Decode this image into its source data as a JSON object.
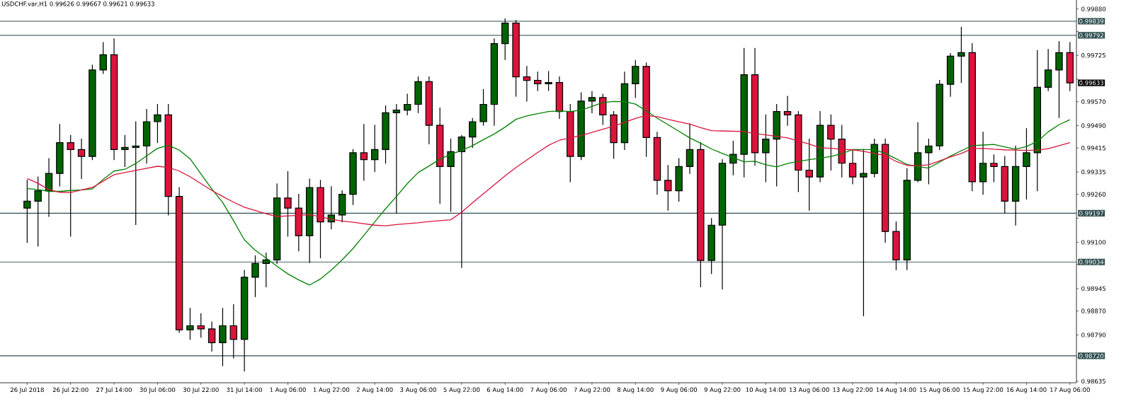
{
  "chart_data": {
    "type": "candlestick",
    "title": "USDCHF.var,H1 0.99626 0.99667 0.99621 0.99633",
    "categories": [
      "26 Jul 2018",
      null,
      null,
      null,
      "26 Jul 22:00",
      null,
      null,
      null,
      "27 Jul 14:00",
      null,
      null,
      null,
      "30 Jul 06:00",
      null,
      null,
      null,
      "30 Jul 22:00",
      null,
      null,
      null,
      "31 Jul 14:00",
      null,
      null,
      null,
      "1 Aug 06:00",
      null,
      null,
      null,
      "1 Aug 22:00",
      null,
      null,
      null,
      "2 Aug 14:00",
      null,
      null,
      null,
      "3 Aug 06:00",
      null,
      null,
      null,
      "5 Aug 22:00",
      null,
      null,
      null,
      "6 Aug 14:00",
      null,
      null,
      null,
      "7 Aug 06:00",
      null,
      null,
      null,
      "7 Aug 22:00",
      null,
      null,
      null,
      "8 Aug 14:00",
      null,
      null,
      null,
      "9 Aug 06:00",
      null,
      null,
      null,
      "9 Aug 22:00",
      null,
      null,
      null,
      "10 Aug 14:00",
      null,
      null,
      null,
      "13 Aug 06:00",
      null,
      null,
      null,
      "13 Aug 22:00",
      null,
      null,
      null,
      "14 Aug 14:00",
      null,
      null,
      null,
      "15 Aug 06:00",
      null,
      null,
      null,
      "15 Aug 22:00",
      null,
      null,
      null,
      "16 Aug 14:00",
      null,
      null,
      null,
      "17 Aug 06:00"
    ],
    "ohlc": [
      [
        0.99214,
        0.99307,
        0.99099,
        0.99237
      ],
      [
        0.99237,
        0.99318,
        0.99087,
        0.99272
      ],
      [
        0.99272,
        0.9938,
        0.99186,
        0.9933
      ],
      [
        0.9933,
        0.99494,
        0.99288,
        0.99433
      ],
      [
        0.99433,
        0.99457,
        0.9912,
        0.9941
      ],
      [
        0.9941,
        0.99445,
        0.99313,
        0.99387
      ],
      [
        0.99387,
        0.99692,
        0.99376,
        0.99676
      ],
      [
        0.99676,
        0.99768,
        0.99664,
        0.99727
      ],
      [
        0.99727,
        0.9978,
        0.99376,
        0.9941
      ],
      [
        0.9941,
        0.99457,
        0.99353,
        0.99417
      ],
      [
        0.99417,
        0.99503,
        0.99159,
        0.99422
      ],
      [
        0.99422,
        0.99544,
        0.99364,
        0.99503
      ],
      [
        0.99503,
        0.99561,
        0.99433,
        0.99526
      ],
      [
        0.99526,
        0.99561,
        0.99191,
        0.99253
      ],
      [
        0.99253,
        0.99283,
        0.98798,
        0.98807
      ],
      [
        0.98807,
        0.98879,
        0.98775,
        0.98821
      ],
      [
        0.98821,
        0.98861,
        0.98782,
        0.9881
      ],
      [
        0.9881,
        0.98833,
        0.98736,
        0.98764
      ],
      [
        0.98764,
        0.98879,
        0.98687,
        0.98821
      ],
      [
        0.98821,
        0.98891,
        0.98713,
        0.98775
      ],
      [
        0.98775,
        0.99006,
        0.98669,
        0.98983
      ],
      [
        0.98983,
        0.99055,
        0.98918,
        0.99029
      ],
      [
        0.99029,
        0.99064,
        0.98951,
        0.99041
      ],
      [
        0.99041,
        0.99295,
        0.99029,
        0.99248
      ],
      [
        0.99248,
        0.99336,
        0.9912,
        0.99214
      ],
      [
        0.99214,
        0.9926,
        0.99071,
        0.99122
      ],
      [
        0.99122,
        0.99311,
        0.99032,
        0.99283
      ],
      [
        0.99283,
        0.99307,
        0.99048,
        0.99168
      ],
      [
        0.99168,
        0.99286,
        0.99145,
        0.99191
      ],
      [
        0.99191,
        0.99272,
        0.99168,
        0.9926
      ],
      [
        0.9926,
        0.9941,
        0.99226,
        0.99399
      ],
      [
        0.99399,
        0.99494,
        0.99307,
        0.99376
      ],
      [
        0.99376,
        0.99491,
        0.99336,
        0.9941
      ],
      [
        0.9941,
        0.99556,
        0.99364,
        0.99533
      ],
      [
        0.99533,
        0.99561,
        0.99198,
        0.99542
      ],
      [
        0.99542,
        0.99595,
        0.99526,
        0.99561
      ],
      [
        0.99561,
        0.99653,
        0.99533,
        0.99637
      ],
      [
        0.99637,
        0.99653,
        0.99429,
        0.99491
      ],
      [
        0.99491,
        0.99549,
        0.9923,
        0.99353
      ],
      [
        0.99353,
        0.99445,
        0.99203,
        0.99403
      ],
      [
        0.99403,
        0.99457,
        0.99015,
        0.99452
      ],
      [
        0.99452,
        0.99514,
        0.99417,
        0.99503
      ],
      [
        0.99503,
        0.99611,
        0.99491,
        0.99561
      ],
      [
        0.99561,
        0.9978,
        0.99491,
        0.99764
      ],
      [
        0.99764,
        0.99847,
        0.99711,
        0.99833
      ],
      [
        0.99833,
        0.99842,
        0.99588,
        0.99653
      ],
      [
        0.99653,
        0.99688,
        0.99572,
        0.99641
      ],
      [
        0.99641,
        0.99669,
        0.99607,
        0.9963
      ],
      [
        0.9963,
        0.99671,
        0.99607,
        0.99634
      ],
      [
        0.99634,
        0.99653,
        0.99514,
        0.99537
      ],
      [
        0.99537,
        0.99561,
        0.99302,
        0.99387
      ],
      [
        0.99387,
        0.996,
        0.99376,
        0.99572
      ],
      [
        0.99572,
        0.99604,
        0.99533,
        0.99584
      ],
      [
        0.99584,
        0.99595,
        0.99494,
        0.99526
      ],
      [
        0.99526,
        0.99537,
        0.9938,
        0.99433
      ],
      [
        0.99433,
        0.99669,
        0.9941,
        0.9963
      ],
      [
        0.9963,
        0.99708,
        0.99584,
        0.99688
      ],
      [
        0.99688,
        0.99699,
        0.99387,
        0.9945
      ],
      [
        0.9945,
        0.99468,
        0.9926,
        0.99307
      ],
      [
        0.99307,
        0.99357,
        0.99207,
        0.99272
      ],
      [
        0.99272,
        0.9938,
        0.99237,
        0.99353
      ],
      [
        0.99353,
        0.99496,
        0.9933,
        0.9941
      ],
      [
        0.9941,
        0.99433,
        0.98951,
        0.99039
      ],
      [
        0.99039,
        0.99179,
        0.98995,
        0.99157
      ],
      [
        0.99157,
        0.99376,
        0.98944,
        0.99364
      ],
      [
        0.99364,
        0.99438,
        0.99325,
        0.99394
      ],
      [
        0.99394,
        0.99748,
        0.99318,
        0.9966
      ],
      [
        0.9966,
        0.99748,
        0.99357,
        0.99399
      ],
      [
        0.99399,
        0.99526,
        0.99302,
        0.99445
      ],
      [
        0.99445,
        0.99561,
        0.99288,
        0.99537
      ],
      [
        0.99537,
        0.99588,
        0.99491,
        0.99526
      ],
      [
        0.99526,
        0.99537,
        0.99269,
        0.99341
      ],
      [
        0.99341,
        0.99445,
        0.99207,
        0.99318
      ],
      [
        0.99318,
        0.99537,
        0.99302,
        0.99491
      ],
      [
        0.99491,
        0.99526,
        0.99341,
        0.99445
      ],
      [
        0.99445,
        0.99491,
        0.99318,
        0.99364
      ],
      [
        0.99364,
        0.9941,
        0.99295,
        0.99318
      ],
      [
        0.99318,
        0.9941,
        0.98854,
        0.9933
      ],
      [
        0.9933,
        0.99445,
        0.99318,
        0.99427
      ],
      [
        0.99427,
        0.99445,
        0.99099,
        0.99136
      ],
      [
        0.99136,
        0.99168,
        0.99008,
        0.99041
      ],
      [
        0.99041,
        0.99346,
        0.99008,
        0.99307
      ],
      [
        0.99307,
        0.995,
        0.99302,
        0.99399
      ],
      [
        0.99399,
        0.99445,
        0.99295,
        0.99422
      ],
      [
        0.99422,
        0.99641,
        0.9941,
        0.99628
      ],
      [
        0.99628,
        0.99731,
        0.99588,
        0.99722
      ],
      [
        0.99722,
        0.99819,
        0.99634,
        0.99734
      ],
      [
        0.99734,
        0.99764,
        0.99272,
        0.99302
      ],
      [
        0.99302,
        0.99468,
        0.9926,
        0.99364
      ],
      [
        0.99364,
        0.99392,
        0.99302,
        0.99353
      ],
      [
        0.99353,
        0.99387,
        0.99198,
        0.99237
      ],
      [
        0.99237,
        0.99422,
        0.99157,
        0.99353
      ],
      [
        0.99353,
        0.9948,
        0.99244,
        0.99399
      ],
      [
        0.99399,
        0.99741,
        0.99272,
        0.99618
      ],
      [
        0.99618,
        0.99745,
        0.99607,
        0.99676
      ],
      [
        0.99676,
        0.99771,
        0.99517,
        0.99734
      ],
      [
        0.99734,
        0.99768,
        0.99607,
        0.99633
      ]
    ],
    "series": [
      {
        "type": "line",
        "color": "#008000",
        "values": [
          0.99279,
          0.99276,
          0.9927,
          0.9927,
          0.99273,
          0.99275,
          0.99278,
          0.9931,
          0.99338,
          0.99344,
          0.99363,
          0.99389,
          0.99414,
          0.99424,
          0.99408,
          0.99379,
          0.99328,
          0.99278,
          0.99233,
          0.99172,
          0.99108,
          0.99073,
          0.99047,
          0.9902,
          0.98994,
          0.98974,
          0.98957,
          0.98977,
          0.99007,
          0.99041,
          0.99079,
          0.99123,
          0.99168,
          0.99212,
          0.99253,
          0.99296,
          0.99333,
          0.99355,
          0.99378,
          0.99394,
          0.99407,
          0.99423,
          0.99443,
          0.99462,
          0.99485,
          0.99511,
          0.99522,
          0.9953,
          0.99537,
          0.99539,
          0.99537,
          0.99542,
          0.99554,
          0.99567,
          0.99571,
          0.9957,
          0.99562,
          0.99539,
          0.99515,
          0.99493,
          0.99471,
          0.99449,
          0.99431,
          0.99412,
          0.99397,
          0.99383,
          0.99369,
          0.99371,
          0.99359,
          0.99352,
          0.99363,
          0.9937,
          0.99376,
          0.99381,
          0.99387,
          0.99396,
          0.9941,
          0.9941,
          0.9941,
          0.99397,
          0.99379,
          0.9936,
          0.99353,
          0.99348,
          0.99368,
          0.99388,
          0.99406,
          0.99423,
          0.99425,
          0.99427,
          0.99419,
          0.99411,
          0.9942,
          0.99437,
          0.99469,
          0.99493,
          0.9951
        ]
      },
      {
        "type": "line",
        "color": "#dc143c",
        "values": [
          0.99313,
          0.99297,
          0.99276,
          0.99267,
          0.99266,
          0.99275,
          0.99283,
          0.99304,
          0.99326,
          0.99333,
          0.9934,
          0.99347,
          0.99354,
          0.9935,
          0.99338,
          0.99319,
          0.99296,
          0.99273,
          0.99253,
          0.99234,
          0.99217,
          0.99206,
          0.99195,
          0.99186,
          0.99188,
          0.9919,
          0.99192,
          0.99185,
          0.99177,
          0.99171,
          0.99167,
          0.99162,
          0.99157,
          0.99155,
          0.99159,
          0.99162,
          0.99165,
          0.99169,
          0.99172,
          0.99175,
          0.992,
          0.99232,
          0.99262,
          0.99292,
          0.99322,
          0.9935,
          0.99375,
          0.994,
          0.99424,
          0.99441,
          0.99449,
          0.99457,
          0.99467,
          0.99478,
          0.99488,
          0.99501,
          0.99514,
          0.99524,
          0.9952,
          0.99511,
          0.99503,
          0.99495,
          0.99483,
          0.99473,
          0.99472,
          0.99471,
          0.9947,
          0.99463,
          0.99459,
          0.99454,
          0.99449,
          0.99438,
          0.99428,
          0.99416,
          0.99414,
          0.99411,
          0.99409,
          0.99404,
          0.99397,
          0.9939,
          0.9937,
          0.99357,
          0.99356,
          0.99359,
          0.99372,
          0.99385,
          0.99397,
          0.99413,
          0.99414,
          0.99411,
          0.99409,
          0.99408,
          0.99407,
          0.99408,
          0.99413,
          0.99423,
          0.99433
        ]
      }
    ],
    "ylim": [
      0.9863,
      0.9991
    ],
    "yticks": [
      {
        "value": 0.98635,
        "label": "0.98635"
      },
      {
        "value": 0.98715,
        "label": null
      },
      {
        "value": 0.9879,
        "label": "0.98790"
      },
      {
        "value": 0.9887,
        "label": "0.98870"
      },
      {
        "value": 0.98945,
        "label": "0.98945"
      },
      {
        "value": 0.99025,
        "label": null
      },
      {
        "value": 0.991,
        "label": "0.99100"
      },
      {
        "value": 0.9918,
        "label": null
      },
      {
        "value": 0.9926,
        "label": "0.99260"
      },
      {
        "value": 0.99335,
        "label": "0.99335"
      },
      {
        "value": 0.99415,
        "label": "0.99415"
      },
      {
        "value": 0.9949,
        "label": "0.99490"
      },
      {
        "value": 0.9957,
        "label": "0.99570"
      },
      {
        "value": 0.99645,
        "label": null
      },
      {
        "value": 0.99725,
        "label": "0.99725"
      },
      {
        "value": 0.99805,
        "label": null
      },
      {
        "value": 0.9988,
        "label": "0.99880"
      }
    ],
    "ref_lines": [
      {
        "axis": "y",
        "value": 0.99839,
        "label": "0.99839",
        "color": "#2f4f4f"
      },
      {
        "axis": "y",
        "value": 0.99792,
        "label": "0.99792",
        "color": "#2f4f4f"
      },
      {
        "axis": "y",
        "value": 0.99197,
        "label": "0.99197",
        "color": "#2f4f4f"
      },
      {
        "axis": "y",
        "value": 0.99034,
        "label": "0.99034",
        "color": "#2f4f4f"
      },
      {
        "axis": "y",
        "value": 0.9872,
        "label": "0.98720",
        "color": "#2f4f4f"
      }
    ],
    "annotations": [
      "0.99633"
    ]
  }
}
